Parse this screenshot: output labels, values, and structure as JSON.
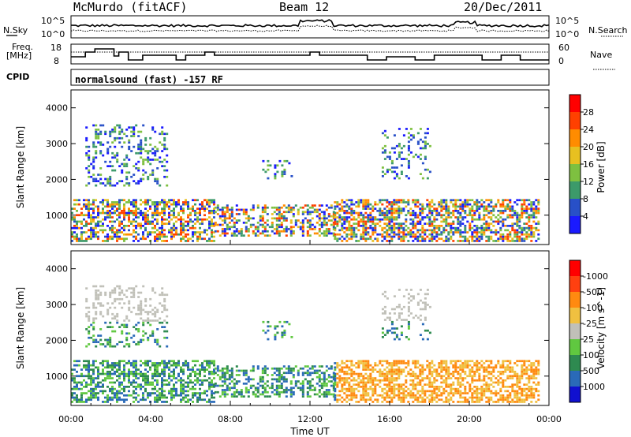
{
  "header": {
    "station": "McMurdo (fitACF)",
    "beam": "Beam 12",
    "date": "20/Dec/2011"
  },
  "noise_panel": {
    "left_label": "N.Sky",
    "right_label": "N.Search",
    "left_ticks": [
      "10^5",
      "10^0"
    ],
    "right_ticks": [
      "10^5",
      "10^0"
    ]
  },
  "freq_panel": {
    "left_label_1": "Freq.",
    "left_label_2": "[MHz]",
    "right_label": "Nave",
    "left_ticks": [
      "18",
      "8"
    ],
    "right_ticks": [
      "60",
      "0"
    ]
  },
  "cpid": {
    "label": "CPID",
    "text": "normalsound (fast) -157 RF"
  },
  "chart_data": [
    {
      "type": "heatmap",
      "name": "power",
      "ylabel": "Slant Range [km]",
      "xlabel": "",
      "ylim": [
        180,
        4500
      ],
      "y_ticks": [
        1000,
        2000,
        3000,
        4000
      ],
      "colorbar": {
        "label": "Power [dB]",
        "ticks": [
          "4",
          "8",
          "12",
          "16",
          "20",
          "24",
          "28"
        ],
        "colors": [
          "#1a1aff",
          "#2850c8",
          "#3c9a6a",
          "#7ec040",
          "#e8c020",
          "#ff8c00",
          "#ff4000",
          "#ff0000"
        ]
      }
    },
    {
      "type": "heatmap",
      "name": "velocity",
      "ylabel": "Slant Range [km]",
      "xlabel": "Time UT",
      "ylim": [
        180,
        4500
      ],
      "y_ticks": [
        1000,
        2000,
        3000,
        4000
      ],
      "x_ticks": [
        "00:00",
        "04:00",
        "08:00",
        "12:00",
        "16:00",
        "20:00",
        "00:00"
      ],
      "colorbar": {
        "label": "Velocity [m s^-1]",
        "ticks": [
          "1000",
          "500",
          "100",
          "25",
          "-25",
          "-100",
          "-500",
          "-1000"
        ],
        "colors": [
          "#1010d0",
          "#2a6ab8",
          "#2e8a50",
          "#60c840",
          "#c0c0b8",
          "#f0c040",
          "#ff8a10",
          "#ff4010",
          "#ff0000"
        ]
      }
    }
  ]
}
